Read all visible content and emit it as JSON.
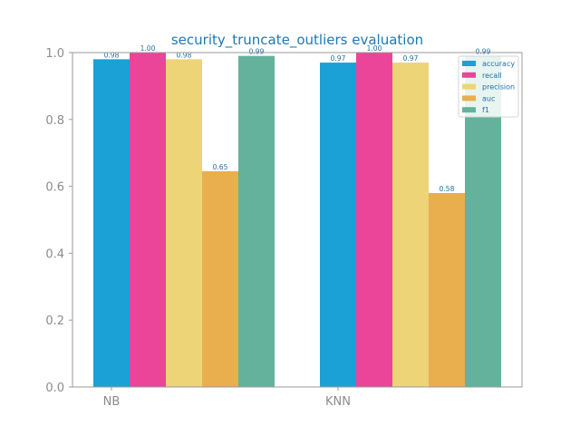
{
  "chart_data": {
    "type": "bar",
    "title": "security_truncate_outliers evaluation",
    "xlabel": "",
    "ylabel": "",
    "categories": [
      "NB",
      "KNN"
    ],
    "ylim": [
      0,
      1.0
    ],
    "yticks": [
      "0.0",
      "0.2",
      "0.4",
      "0.6",
      "0.8",
      "1.0"
    ],
    "grid": false,
    "legend_position": "top-right",
    "series": [
      {
        "name": "accuracy",
        "color": "#1ba1d6",
        "values": [
          0.98,
          0.97
        ],
        "labels": [
          "0.98",
          "0.97"
        ]
      },
      {
        "name": "recall",
        "color": "#ea4598",
        "values": [
          1.0,
          1.0
        ],
        "labels": [
          "1.00",
          "1.00"
        ]
      },
      {
        "name": "precision",
        "color": "#edd477",
        "values": [
          0.98,
          0.97
        ],
        "labels": [
          "0.98",
          "0.97"
        ]
      },
      {
        "name": "auc",
        "color": "#e9ae4e",
        "values": [
          0.645,
          0.58
        ],
        "labels": [
          "0.65",
          "0.58"
        ]
      },
      {
        "name": "f1",
        "color": "#64b29b",
        "values": [
          0.99,
          0.99
        ],
        "labels": [
          "0.99",
          "0.99"
        ]
      }
    ]
  }
}
